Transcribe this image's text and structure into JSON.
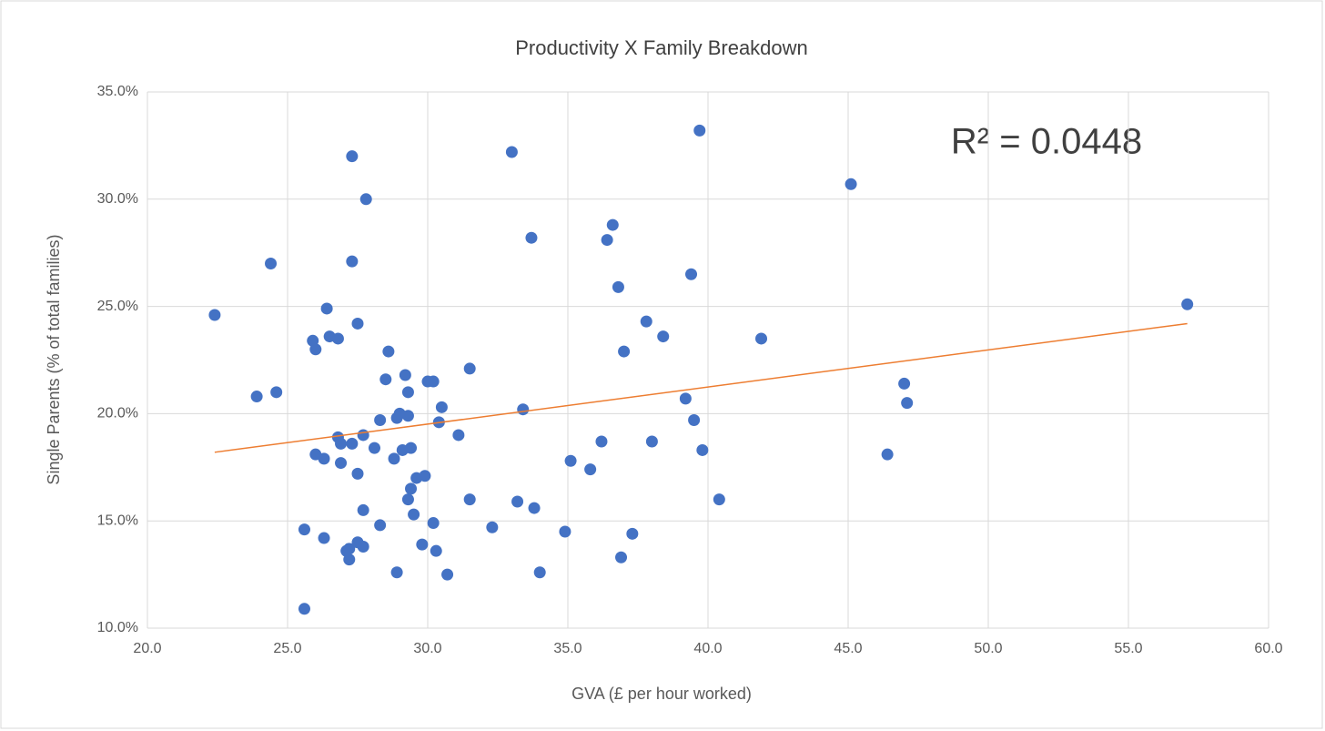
{
  "chart_data": {
    "type": "scatter",
    "title": "Productivity X Family Breakdown",
    "x_label": "GVA (£ per hour worked)",
    "y_label": "Single Parents (% of total families)",
    "annotation": "R² = 0.0448",
    "color": "#4472c4",
    "grid": true,
    "xlim": [
      20,
      60
    ],
    "ylim": [
      10,
      35
    ],
    "xticks": [
      {
        "value": 20,
        "label": "20.0"
      },
      {
        "value": 25,
        "label": "25.0"
      },
      {
        "value": 30,
        "label": "30.0"
      },
      {
        "value": 35,
        "label": "35.0"
      },
      {
        "value": 40,
        "label": "40.0"
      },
      {
        "value": 45,
        "label": "45.0"
      },
      {
        "value": 50,
        "label": "50.0"
      },
      {
        "value": 55,
        "label": "55.0"
      },
      {
        "value": 60,
        "label": "60.0"
      }
    ],
    "yticks": [
      {
        "value": 10,
        "label": "10.0%"
      },
      {
        "value": 15,
        "label": "15.0%"
      },
      {
        "value": 20,
        "label": "20.0%"
      },
      {
        "value": 25,
        "label": "25.0%"
      },
      {
        "value": 30,
        "label": "30.0%"
      },
      {
        "value": 35,
        "label": "35.0%"
      }
    ],
    "x": [
      22.4,
      23.9,
      24.4,
      24.6,
      25.6,
      25.6,
      25.9,
      26.0,
      26.0,
      26.3,
      26.3,
      26.4,
      26.5,
      26.8,
      26.8,
      26.9,
      26.9,
      27.1,
      27.2,
      27.2,
      27.3,
      27.3,
      27.3,
      27.5,
      27.5,
      27.5,
      27.7,
      27.7,
      27.7,
      27.8,
      28.1,
      28.3,
      28.3,
      28.5,
      28.6,
      28.8,
      28.9,
      28.9,
      29.0,
      29.1,
      29.2,
      29.3,
      29.3,
      29.3,
      29.4,
      29.4,
      29.5,
      29.6,
      29.8,
      29.9,
      30.0,
      30.2,
      30.2,
      30.3,
      30.5,
      30.4,
      30.7,
      31.1,
      31.5,
      31.5,
      32.3,
      33.0,
      33.2,
      33.4,
      33.7,
      33.8,
      34.0,
      34.9,
      35.1,
      35.8,
      36.2,
      36.4,
      36.6,
      36.8,
      36.9,
      37.0,
      37.3,
      37.8,
      38.0,
      38.4,
      39.2,
      39.4,
      39.5,
      39.7,
      39.8,
      40.4,
      41.9,
      45.1,
      46.4,
      47.0,
      47.1,
      57.1
    ],
    "y": [
      24.6,
      20.8,
      27.0,
      21.0,
      10.9,
      14.6,
      23.4,
      18.1,
      23.0,
      14.2,
      17.9,
      24.9,
      23.6,
      23.5,
      18.9,
      18.6,
      17.7,
      13.6,
      13.7,
      13.2,
      32.0,
      27.1,
      18.6,
      24.2,
      17.2,
      14.0,
      13.8,
      19.0,
      15.5,
      30.0,
      18.4,
      14.8,
      19.7,
      21.6,
      22.9,
      17.9,
      12.6,
      19.8,
      20.0,
      18.3,
      21.8,
      16.0,
      21.0,
      19.9,
      18.4,
      16.5,
      15.3,
      17.0,
      13.9,
      17.1,
      21.5,
      14.9,
      21.5,
      13.6,
      20.3,
      19.6,
      12.5,
      19.0,
      22.1,
      16.0,
      14.7,
      32.2,
      15.9,
      20.2,
      28.2,
      15.6,
      12.6,
      14.5,
      17.8,
      17.4,
      18.7,
      28.1,
      28.8,
      25.9,
      13.3,
      22.9,
      14.4,
      24.3,
      18.7,
      23.6,
      20.7,
      26.5,
      19.7,
      33.2,
      18.3,
      16.0,
      23.5,
      30.7,
      18.1,
      21.4,
      20.5,
      25.1
    ],
    "trendline": {
      "color": "#ed7d31",
      "x": [
        22.4,
        57.1
      ],
      "y": [
        18.2,
        24.2
      ]
    }
  }
}
